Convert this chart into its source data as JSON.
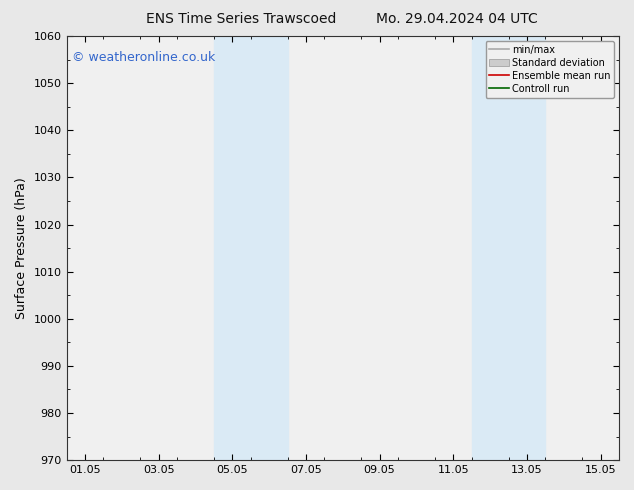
{
  "title_left": "ENS Time Series Trawscoed",
  "title_right": "Mo. 29.04.2024 04 UTC",
  "watermark": "© weatheronline.co.uk",
  "ylabel": "Surface Pressure (hPa)",
  "ylim": [
    970,
    1060
  ],
  "yticks": [
    970,
    980,
    990,
    1000,
    1010,
    1020,
    1030,
    1040,
    1050,
    1060
  ],
  "xlim_start": -0.5,
  "xlim_end": 14.5,
  "xtick_positions": [
    0,
    2,
    4,
    6,
    8,
    10,
    12,
    14
  ],
  "xtick_labels": [
    "01.05",
    "03.05",
    "05.05",
    "07.05",
    "09.05",
    "11.05",
    "13.05",
    "15.05"
  ],
  "shaded_bands": [
    {
      "x_start": 3.5,
      "x_end": 5.5
    },
    {
      "x_start": 10.5,
      "x_end": 12.5
    }
  ],
  "shade_color": "#daeaf5",
  "background_color": "#e8e8e8",
  "plot_bg_color": "#f0f0f0",
  "legend_items": [
    {
      "label": "min/max",
      "color": "#aaaaaa",
      "lw": 1.2,
      "type": "line"
    },
    {
      "label": "Standard deviation",
      "color": "#cccccc",
      "type": "box"
    },
    {
      "label": "Ensemble mean run",
      "color": "#cc0000",
      "lw": 1.2,
      "type": "line"
    },
    {
      "label": "Controll run",
      "color": "#006600",
      "lw": 1.2,
      "type": "line"
    }
  ],
  "title_fontsize": 10,
  "axis_label_fontsize": 9,
  "tick_fontsize": 8,
  "watermark_fontsize": 9,
  "watermark_color": "#3366cc"
}
